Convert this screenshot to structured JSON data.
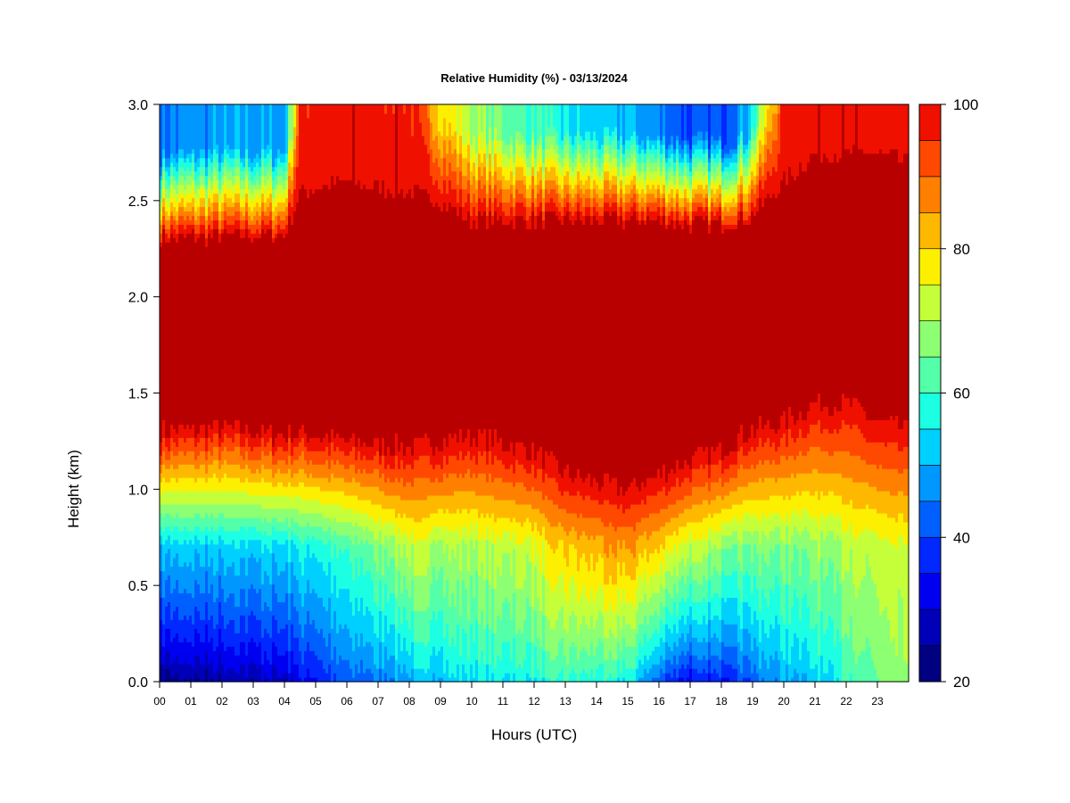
{
  "chart_data": {
    "type": "heatmap",
    "title": "Relative Humidity (%) - 03/13/2024",
    "xlabel": "Hours (UTC)",
    "ylabel": "Height (km)",
    "xlim": [
      0,
      24
    ],
    "ylim": [
      0.0,
      3.0
    ],
    "x_tick_labels": [
      "00",
      "01",
      "02",
      "03",
      "04",
      "05",
      "06",
      "07",
      "08",
      "09",
      "10",
      "11",
      "12",
      "13",
      "14",
      "15",
      "16",
      "17",
      "18",
      "19",
      "20",
      "21",
      "22",
      "23"
    ],
    "y_ticks": [
      0.0,
      0.5,
      1.0,
      1.5,
      2.0,
      2.5,
      3.0
    ],
    "y_tick_labels": [
      "0.0",
      "0.5",
      "1.0",
      "1.5",
      "2.0",
      "2.5",
      "3.0"
    ],
    "colorbar": {
      "range": [
        20,
        100
      ],
      "step": 5,
      "tick_values": [
        20,
        40,
        60,
        80,
        100
      ],
      "tick_labels": [
        "20",
        "40",
        "60",
        "80",
        "100"
      ],
      "colors": [
        "#000080",
        "#0000b8",
        "#0000f0",
        "#0028ff",
        "#0060ff",
        "#0098ff",
        "#00d0ff",
        "#1cffe2",
        "#54ffaa",
        "#8cff72",
        "#c4ff3a",
        "#fcf000",
        "#ffb800",
        "#ff8000",
        "#ff4800",
        "#f01000",
        "#b80000",
        "#800000"
      ]
    },
    "profile": {
      "hours": [
        0,
        2,
        4,
        4.5,
        6,
        8,
        9,
        10,
        12,
        13,
        15,
        16,
        17,
        18,
        18.8,
        20,
        21,
        22,
        23,
        24
      ],
      "saturated_bottom_km": [
        1.3,
        1.32,
        1.28,
        1.3,
        1.25,
        1.22,
        1.25,
        1.28,
        1.2,
        1.08,
        1.0,
        1.08,
        1.15,
        1.2,
        1.3,
        1.35,
        1.45,
        1.45,
        1.35,
        1.3
      ],
      "saturated_top_km": [
        2.3,
        2.32,
        2.32,
        2.55,
        2.6,
        2.55,
        2.5,
        2.4,
        2.4,
        2.4,
        2.4,
        2.4,
        2.38,
        2.38,
        2.4,
        2.6,
        2.75,
        2.75,
        2.75,
        2.7
      ],
      "near_surface_rh": [
        22,
        24,
        28,
        32,
        40,
        48,
        52,
        54,
        56,
        58,
        55,
        40,
        32,
        35,
        40,
        48,
        52,
        58,
        64,
        66
      ],
      "aloft_rh": [
        45,
        48,
        48,
        96,
        98,
        97,
        80,
        70,
        60,
        55,
        50,
        45,
        40,
        40,
        50,
        97,
        98,
        98,
        97,
        96
      ],
      "mid_rh_at_0_7km": [
        52,
        52,
        54,
        56,
        60,
        72,
        70,
        70,
        74,
        80,
        85,
        80,
        72,
        68,
        66,
        66,
        68,
        70,
        72,
        72
      ]
    }
  }
}
